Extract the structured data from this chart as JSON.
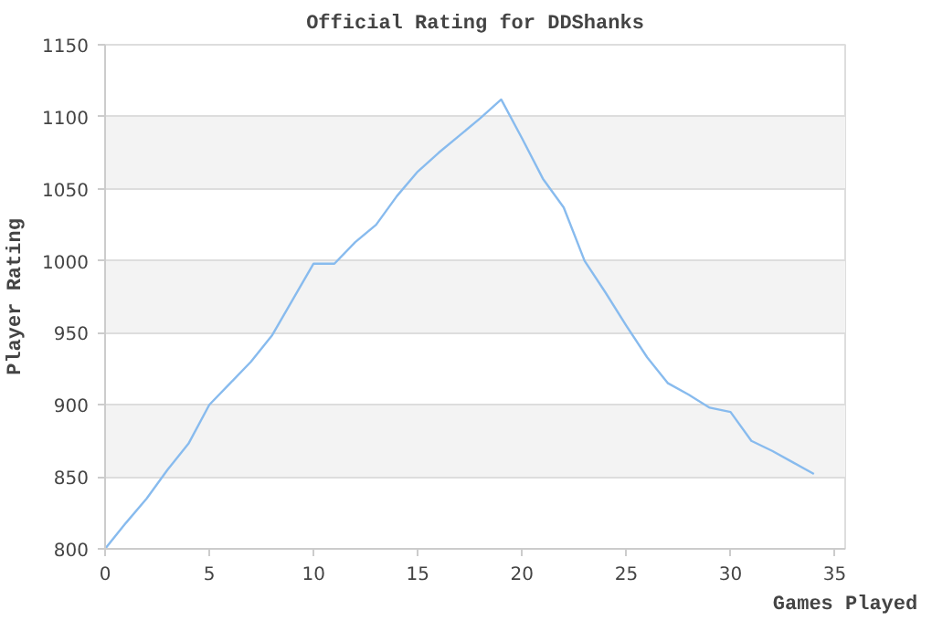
{
  "chart_data": {
    "type": "line",
    "title": "Official Rating for DDShanks",
    "xlabel": "Games Played",
    "ylabel": "Player Rating",
    "x": [
      0,
      1,
      2,
      3,
      4,
      5,
      6,
      7,
      8,
      9,
      10,
      11,
      12,
      13,
      14,
      15,
      16,
      17,
      18,
      19,
      20,
      21,
      22,
      23,
      24,
      25,
      26,
      27,
      28,
      29,
      30,
      31,
      32,
      33,
      34
    ],
    "series": [
      {
        "color": "#88bbee",
        "values": [
          800,
          818,
          835,
          855,
          873,
          900,
          915,
          930,
          948,
          973,
          998,
          998,
          1013,
          1025,
          1045,
          1062,
          1075,
          1087,
          1099,
          1112,
          1085,
          1057,
          1037,
          1000,
          978,
          955,
          933,
          915,
          907,
          898,
          895,
          875,
          868,
          860,
          852
        ]
      }
    ],
    "xlim": [
      0,
      35.5
    ],
    "xticks": [
      0,
      5,
      10,
      15,
      20,
      25,
      30,
      35
    ],
    "ylim": [
      800,
      1150
    ],
    "yticks": [
      800,
      850,
      900,
      950,
      1000,
      1050,
      1100,
      1150
    ],
    "grid": "y",
    "marker": "none",
    "line_style": "solid"
  }
}
